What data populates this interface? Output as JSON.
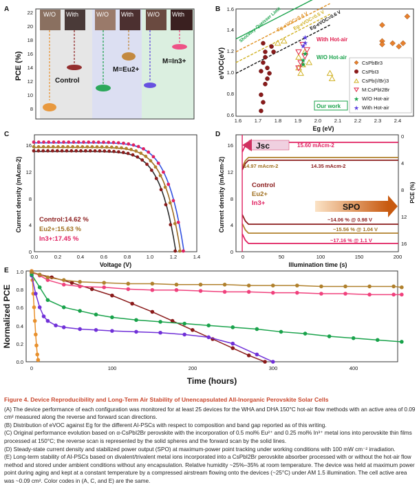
{
  "panel_a": {
    "letter": "A",
    "ylabel": "PCE (%)",
    "ticks": [
      "22",
      "20",
      "18",
      "16",
      "14",
      "12",
      "10",
      "8"
    ],
    "photo_labels": [
      "W/O",
      "With",
      "W/O",
      "With",
      "W/O",
      "With"
    ],
    "groups": [
      "Control",
      "M=Eu2+",
      "M=In3+"
    ],
    "colors": {
      "wo": "#e8902c",
      "control": "#8a1a1a",
      "eu_wo": "#18a24a",
      "eu": "#c0802c",
      "in_wo": "#5a3fe0",
      "in": "#f0407c"
    }
  },
  "panel_b": {
    "letter": "B",
    "ylabel": "eVOC(eV)",
    "xlabel": "Eg (eV)",
    "xticks": [
      "1.6",
      "1.7",
      "1.8",
      "1.9",
      "2.0",
      "2.1",
      "2.2",
      "2.3",
      "2.4"
    ],
    "yticks": [
      "0.6",
      "0.8",
      "1.0",
      "1.2",
      "1.4",
      "1.6"
    ],
    "lines": [
      "Shockley-Queisser Limit",
      "Eg-eVOC=0.4 V",
      "Eg-eVOC=0.5 V",
      "Eg-eVOC=0.6 V"
    ],
    "annotations": [
      "With Hot-air",
      "W/O Hot-air",
      "Our work"
    ],
    "legend": [
      "CsPbBr3",
      "CsPbI3",
      "CsPb(I/Br)3",
      "M:CsPbI2Br",
      "W/O Hot-air",
      "With Hot-air"
    ]
  },
  "panel_c": {
    "letter": "C",
    "ylabel": "Current density (mAcm-2)",
    "xlabel": "Voltage (V)",
    "xticks": [
      "0.0",
      "0.2",
      "0.4",
      "0.6",
      "0.8",
      "1.0",
      "1.2",
      "1.4"
    ],
    "yticks": [
      "0",
      "4",
      "8",
      "12",
      "16"
    ],
    "labels": [
      "Control:14.62 %",
      "Eu2+:15.63 %",
      "In3+:17.45 %"
    ]
  },
  "panel_d": {
    "letter": "D",
    "ylabel_left": "Current density (mAcm-2)",
    "ylabel_right": "PCE (%)",
    "xlabel": "Illumination time (s)",
    "xticks": [
      "0",
      "50",
      "100",
      "150",
      "200"
    ],
    "yticks_left": [
      "0",
      "4",
      "8",
      "12",
      "16"
    ],
    "yticks_right": [
      "0",
      "4",
      "8",
      "12",
      "16"
    ],
    "jsc_label": "Jsc",
    "spo_label": "SPO",
    "jsc_values": [
      "15.60 mAcm-2",
      "14.97 mAcm-2",
      "14.35 mAcm-2"
    ],
    "spo_values": [
      "~14.06 % @ 0.98 V",
      "~15.56 % @ 1.04 V",
      "~17.16 % @ 1.1 V"
    ],
    "legend": [
      "Control",
      "Eu2+",
      "In3+"
    ]
  },
  "panel_e": {
    "letter": "E",
    "ylabel": "Normalized PCE",
    "xlabel": "Time (hours)",
    "xticks": [
      "0",
      "100",
      "200",
      "300",
      "400"
    ],
    "yticks": [
      "0.0",
      "0.2",
      "0.4",
      "0.6",
      "0.8",
      "1.0"
    ]
  },
  "caption": {
    "title": "Figure 4.  Device Reproducibility and Long-Term Air Stability of Unencapsulated All-Inorganic Perovskite Solar Cells",
    "a": "(A) The device performance of each configuration was monitored for at least 25 devices for the WHA and DHA 150°C hot-air flow methods with an active area of 0.09 cm² measured along the reverse and forward scan directions.",
    "b": "(B) Distribution of eVOC against Eg for the different AI-PSCs with respect to composition and band gap reported as of this writing.",
    "c": "(C) Original performance evolution based on α-CsPbI2Br perovskite with the incorporation of 0.5 mol% Eu²⁺ and 0.25 mol% In³⁺ metal ions into perovskite thin films processed at 150°C; the reverse scan is represented by the solid spheres and the forward scan by the solid lines.",
    "d": "(D) Steady-state current density and stabilized power output (SPO) at maximum-power point tracking under working conditions with 100 mW cm⁻² irradiation.",
    "e": "(E) Long-term stability of AI-PSCs based on divalent/trivalent metal ions incorporated into a CsPbI2Br perovskite absorber processed with or without the hot-air flow method and stored under ambient conditions without any encapsulation. Relative humidity ~25%–35% at room temperature. The device was held at maximum power point during aging and kept at a constant temperature by a compressed airstream flowing onto the devices (~25°C) under AM 1.5 illumination. The cell active area was ~0.09 cm². Color codes in (A, C, and E) are the same."
  },
  "chart_data": [
    {
      "type": "scatter",
      "panel": "B",
      "xlabel": "Eg (eV)",
      "ylabel": "eVOC(eV)",
      "xlim": [
        1.6,
        2.45
      ],
      "ylim": [
        0.6,
        1.6
      ],
      "series": [
        {
          "name": "CsPbBr3",
          "points": [
            [
              2.3,
              1.45
            ],
            [
              2.3,
              1.3
            ],
            [
              2.35,
              1.28
            ],
            [
              2.38,
              1.25
            ],
            [
              2.4,
              1.28
            ],
            [
              2.42,
              1.53
            ],
            [
              2.3,
              1.27
            ]
          ]
        },
        {
          "name": "CsPbI3",
          "points": [
            [
              1.72,
              0.65
            ],
            [
              1.73,
              0.73
            ],
            [
              1.72,
              0.8
            ],
            [
              1.74,
              0.9
            ],
            [
              1.75,
              0.95
            ],
            [
              1.75,
              1.05
            ],
            [
              1.73,
              1.1
            ],
            [
              1.74,
              1.15
            ],
            [
              1.74,
              1.2
            ],
            [
              1.73,
              1.28
            ],
            [
              1.78,
              1.2
            ],
            [
              1.77,
              1.25
            ],
            [
              1.76,
              1.0
            ],
            [
              1.72,
              1.02
            ]
          ]
        },
        {
          "name": "CsPb(I/Br)3",
          "points": [
            [
              1.8,
              1.28
            ],
            [
              1.83,
              1.3
            ],
            [
              1.9,
              1.05
            ],
            [
              1.91,
              1.0
            ],
            [
              1.92,
              1.08
            ],
            [
              1.95,
              1.1
            ],
            [
              1.93,
              1.2
            ],
            [
              2.05,
              1.0
            ],
            [
              2.06,
              0.95
            ],
            [
              1.9,
              1.15
            ]
          ]
        },
        {
          "name": "M:CsPbI2Br",
          "points": [
            [
              1.9,
              1.2
            ],
            [
              1.92,
              1.27
            ],
            [
              1.94,
              1.22
            ],
            [
              1.93,
              1.16
            ],
            [
              1.91,
              1.1
            ],
            [
              1.9,
              1.05
            ]
          ]
        },
        {
          "name": "W/O Hot-air",
          "points": [
            [
              1.92,
              1.12
            ],
            [
              1.93,
              1.18
            ],
            [
              1.92,
              1.08
            ]
          ]
        },
        {
          "name": "With Hot-air",
          "points": [
            [
              1.93,
              1.33
            ],
            [
              1.93,
              1.28
            ],
            [
              1.92,
              1.25
            ]
          ]
        }
      ]
    },
    {
      "type": "line",
      "panel": "C",
      "xlabel": "Voltage (V)",
      "ylabel": "Current density (mAcm-2)",
      "xlim": [
        0,
        1.4
      ],
      "ylim": [
        0,
        17.5
      ],
      "series": [
        {
          "name": "Control",
          "jsc": 15.0,
          "voc": 1.22
        },
        {
          "name": "Eu2+",
          "jsc": 15.6,
          "voc": 1.26
        },
        {
          "name": "In3+",
          "jsc": 16.3,
          "voc": 1.29
        }
      ]
    },
    {
      "type": "line",
      "panel": "E",
      "xlabel": "Time (hours)",
      "ylabel": "Normalized PCE",
      "xlim": [
        0,
        460
      ],
      "ylim": [
        0,
        1.0
      ],
      "series": [
        {
          "color": "#e8902c",
          "x": [
            0,
            1,
            2,
            3,
            4,
            5,
            6,
            7,
            8
          ],
          "y": [
            1.0,
            0.9,
            0.75,
            0.6,
            0.45,
            0.3,
            0.18,
            0.08,
            0.02
          ]
        },
        {
          "color": "#8a1a1a",
          "x": [
            0,
            25,
            50,
            75,
            100,
            125,
            150,
            175,
            200,
            225,
            250,
            270,
            290
          ],
          "y": [
            0.98,
            0.93,
            0.87,
            0.8,
            0.73,
            0.64,
            0.55,
            0.45,
            0.35,
            0.25,
            0.15,
            0.07,
            0.0
          ]
        },
        {
          "color": "#7030d8",
          "x": [
            0,
            5,
            10,
            15,
            20,
            30,
            40,
            60,
            80,
            100,
            130,
            160,
            190,
            220,
            250,
            280,
            300
          ],
          "y": [
            0.95,
            0.75,
            0.6,
            0.5,
            0.45,
            0.4,
            0.38,
            0.36,
            0.35,
            0.34,
            0.33,
            0.32,
            0.3,
            0.27,
            0.2,
            0.08,
            0.0
          ]
        },
        {
          "color": "#18a24a",
          "x": [
            0,
            10,
            20,
            40,
            60,
            80,
            100,
            130,
            160,
            190,
            220,
            250,
            280,
            310,
            340,
            370,
            400,
            430,
            460
          ],
          "y": [
            0.96,
            0.82,
            0.68,
            0.6,
            0.56,
            0.52,
            0.49,
            0.46,
            0.44,
            0.42,
            0.4,
            0.38,
            0.36,
            0.33,
            0.31,
            0.28,
            0.26,
            0.24,
            0.22
          ]
        },
        {
          "color": "#f0407c",
          "x": [
            0,
            10,
            20,
            40,
            60,
            90,
            120,
            150,
            180,
            210,
            240,
            270,
            300,
            330,
            360,
            390,
            420,
            450,
            460
          ],
          "y": [
            0.99,
            0.95,
            0.9,
            0.85,
            0.83,
            0.82,
            0.8,
            0.79,
            0.79,
            0.78,
            0.77,
            0.77,
            0.76,
            0.76,
            0.75,
            0.75,
            0.74,
            0.74,
            0.74
          ]
        },
        {
          "color": "#b0802c",
          "x": [
            0,
            10,
            20,
            40,
            60,
            90,
            120,
            150,
            180,
            210,
            240,
            270,
            300,
            330,
            360,
            390,
            420,
            450,
            460
          ],
          "y": [
            0.99,
            0.96,
            0.93,
            0.9,
            0.88,
            0.87,
            0.86,
            0.86,
            0.85,
            0.85,
            0.85,
            0.84,
            0.84,
            0.84,
            0.83,
            0.83,
            0.83,
            0.83,
            0.82
          ]
        }
      ]
    }
  ]
}
